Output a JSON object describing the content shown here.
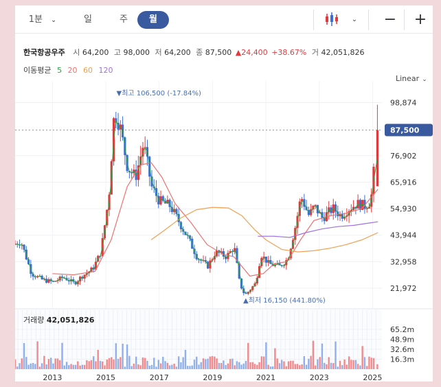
{
  "toolbar": {
    "period": "1분",
    "day": "일",
    "week": "주",
    "month": "월",
    "selected": "월",
    "chart_type_icon": "candlestick-icon",
    "zoom_out": "−",
    "zoom_in": "+"
  },
  "stock": {
    "name": "한국항공우주",
    "open_label": "시",
    "open": "64,200",
    "high_label": "고",
    "high": "98,000",
    "low_label": "저",
    "low": "64,200",
    "close_label": "종",
    "close": "87,500",
    "change": "▲24,400",
    "change_pct": "+38.67%",
    "volume_label": "거",
    "volume": "42,051,826"
  },
  "moving_avg": {
    "label": "이동평균",
    "periods": [
      {
        "name": "5",
        "color": "#2ea043"
      },
      {
        "name": "20",
        "color": "#f07070"
      },
      {
        "name": "60",
        "color": "#f0a050"
      },
      {
        "name": "120",
        "color": "#a070e0"
      }
    ]
  },
  "scale_mode": "Linear",
  "volume_panel": {
    "label": "거래량",
    "value": "42,051,826"
  },
  "colors": {
    "up": "#e03a3e",
    "down": "#3a6fd8",
    "accent": "#3a5aa0"
  },
  "chart_data": {
    "type": "candlestick",
    "x_ticks": [
      "2013",
      "2015",
      "2017",
      "2019",
      "2021",
      "2023",
      "2025"
    ],
    "y_ticks": [
      "21,972",
      "32,958",
      "43,944",
      "54,930",
      "65,916",
      "76,902",
      "98,874"
    ],
    "y_tick_values": [
      21972,
      32958,
      43944,
      54930,
      65916,
      76902,
      98874
    ],
    "ylim": [
      14000,
      105000
    ],
    "current_price_label": "87,500",
    "current_price": 87500,
    "max_annotation": "▼최고 106,500 (-17.84%)",
    "min_annotation": "▲최저 16,150 (441.80%)",
    "max_point": {
      "year": 2015.45,
      "value": 106500
    },
    "min_point": {
      "year": 2020.2,
      "value": 16150
    },
    "keypoints": [
      [
        2011.6,
        40000
      ],
      [
        2011.9,
        41500
      ],
      [
        2012.3,
        28000
      ],
      [
        2012.7,
        25500
      ],
      [
        2013.1,
        24500
      ],
      [
        2013.5,
        26500
      ],
      [
        2013.9,
        24000
      ],
      [
        2014.2,
        27000
      ],
      [
        2014.6,
        30000
      ],
      [
        2014.9,
        37000
      ],
      [
        2015.2,
        60000
      ],
      [
        2015.4,
        95000
      ],
      [
        2015.6,
        90000
      ],
      [
        2015.9,
        72000
      ],
      [
        2016.2,
        68000
      ],
      [
        2016.5,
        82000
      ],
      [
        2016.8,
        64000
      ],
      [
        2017.1,
        58000
      ],
      [
        2017.5,
        56000
      ],
      [
        2017.8,
        50000
      ],
      [
        2018.2,
        42000
      ],
      [
        2018.5,
        35000
      ],
      [
        2018.9,
        31000
      ],
      [
        2019.2,
        37000
      ],
      [
        2019.6,
        35000
      ],
      [
        2019.9,
        39000
      ],
      [
        2020.1,
        24000
      ],
      [
        2020.3,
        19000
      ],
      [
        2020.7,
        24000
      ],
      [
        2020.9,
        36000
      ],
      [
        2021.2,
        32000
      ],
      [
        2021.6,
        31000
      ],
      [
        2021.9,
        34000
      ],
      [
        2022.2,
        48000
      ],
      [
        2022.4,
        60000
      ],
      [
        2022.7,
        52000
      ],
      [
        2022.9,
        56000
      ],
      [
        2023.2,
        51000
      ],
      [
        2023.6,
        55000
      ],
      [
        2023.9,
        52000
      ],
      [
        2024.2,
        55000
      ],
      [
        2024.5,
        57000
      ],
      [
        2024.8,
        56000
      ],
      [
        2025.0,
        58000
      ],
      [
        2025.1,
        64200
      ],
      [
        2025.2,
        87500
      ]
    ],
    "ma_lines": [
      {
        "name": "20",
        "color": "#f07070",
        "points": [
          [
            2013.0,
            28000
          ],
          [
            2013.8,
            27500
          ],
          [
            2014.6,
            29000
          ],
          [
            2015.2,
            42000
          ],
          [
            2015.8,
            64000
          ],
          [
            2016.3,
            73000
          ],
          [
            2016.7,
            74000
          ],
          [
            2017.1,
            68000
          ],
          [
            2017.6,
            57000
          ],
          [
            2018.2,
            49000
          ],
          [
            2018.8,
            40000
          ],
          [
            2019.4,
            36000
          ],
          [
            2019.8,
            35000
          ],
          [
            2020.4,
            27000
          ],
          [
            2020.9,
            28000
          ],
          [
            2021.3,
            32000
          ],
          [
            2021.8,
            33000
          ],
          [
            2022.3,
            42000
          ],
          [
            2022.8,
            50000
          ],
          [
            2023.4,
            52000
          ],
          [
            2024.0,
            53000
          ],
          [
            2024.6,
            55000
          ],
          [
            2025.2,
            63000
          ]
        ]
      },
      {
        "name": "60",
        "color": "#f0a050",
        "points": [
          [
            2016.7,
            42000
          ],
          [
            2017.2,
            46000
          ],
          [
            2017.8,
            51000
          ],
          [
            2018.4,
            54500
          ],
          [
            2019.0,
            55500
          ],
          [
            2019.6,
            55200
          ],
          [
            2020.1,
            52000
          ],
          [
            2020.6,
            46000
          ],
          [
            2021.0,
            42000
          ],
          [
            2021.6,
            38000
          ],
          [
            2022.2,
            37000
          ],
          [
            2022.8,
            37500
          ],
          [
            2023.4,
            38500
          ],
          [
            2024.0,
            40000
          ],
          [
            2024.6,
            42000
          ],
          [
            2025.2,
            45000
          ]
        ]
      },
      {
        "name": "120",
        "color": "#a070e0",
        "points": [
          [
            2020.7,
            43500
          ],
          [
            2021.3,
            43500
          ],
          [
            2021.9,
            43000
          ],
          [
            2022.5,
            45000
          ],
          [
            2023.1,
            46500
          ],
          [
            2023.7,
            47500
          ],
          [
            2024.3,
            48000
          ],
          [
            2024.9,
            49000
          ],
          [
            2025.2,
            49500
          ]
        ]
      }
    ],
    "volume_ticks": [
      "16.3m",
      "32.6m",
      "48.9m",
      "65.2m"
    ],
    "volume_tick_values": [
      16.3,
      32.6,
      48.9,
      65.2
    ],
    "volume_ylim": [
      0,
      72
    ]
  }
}
